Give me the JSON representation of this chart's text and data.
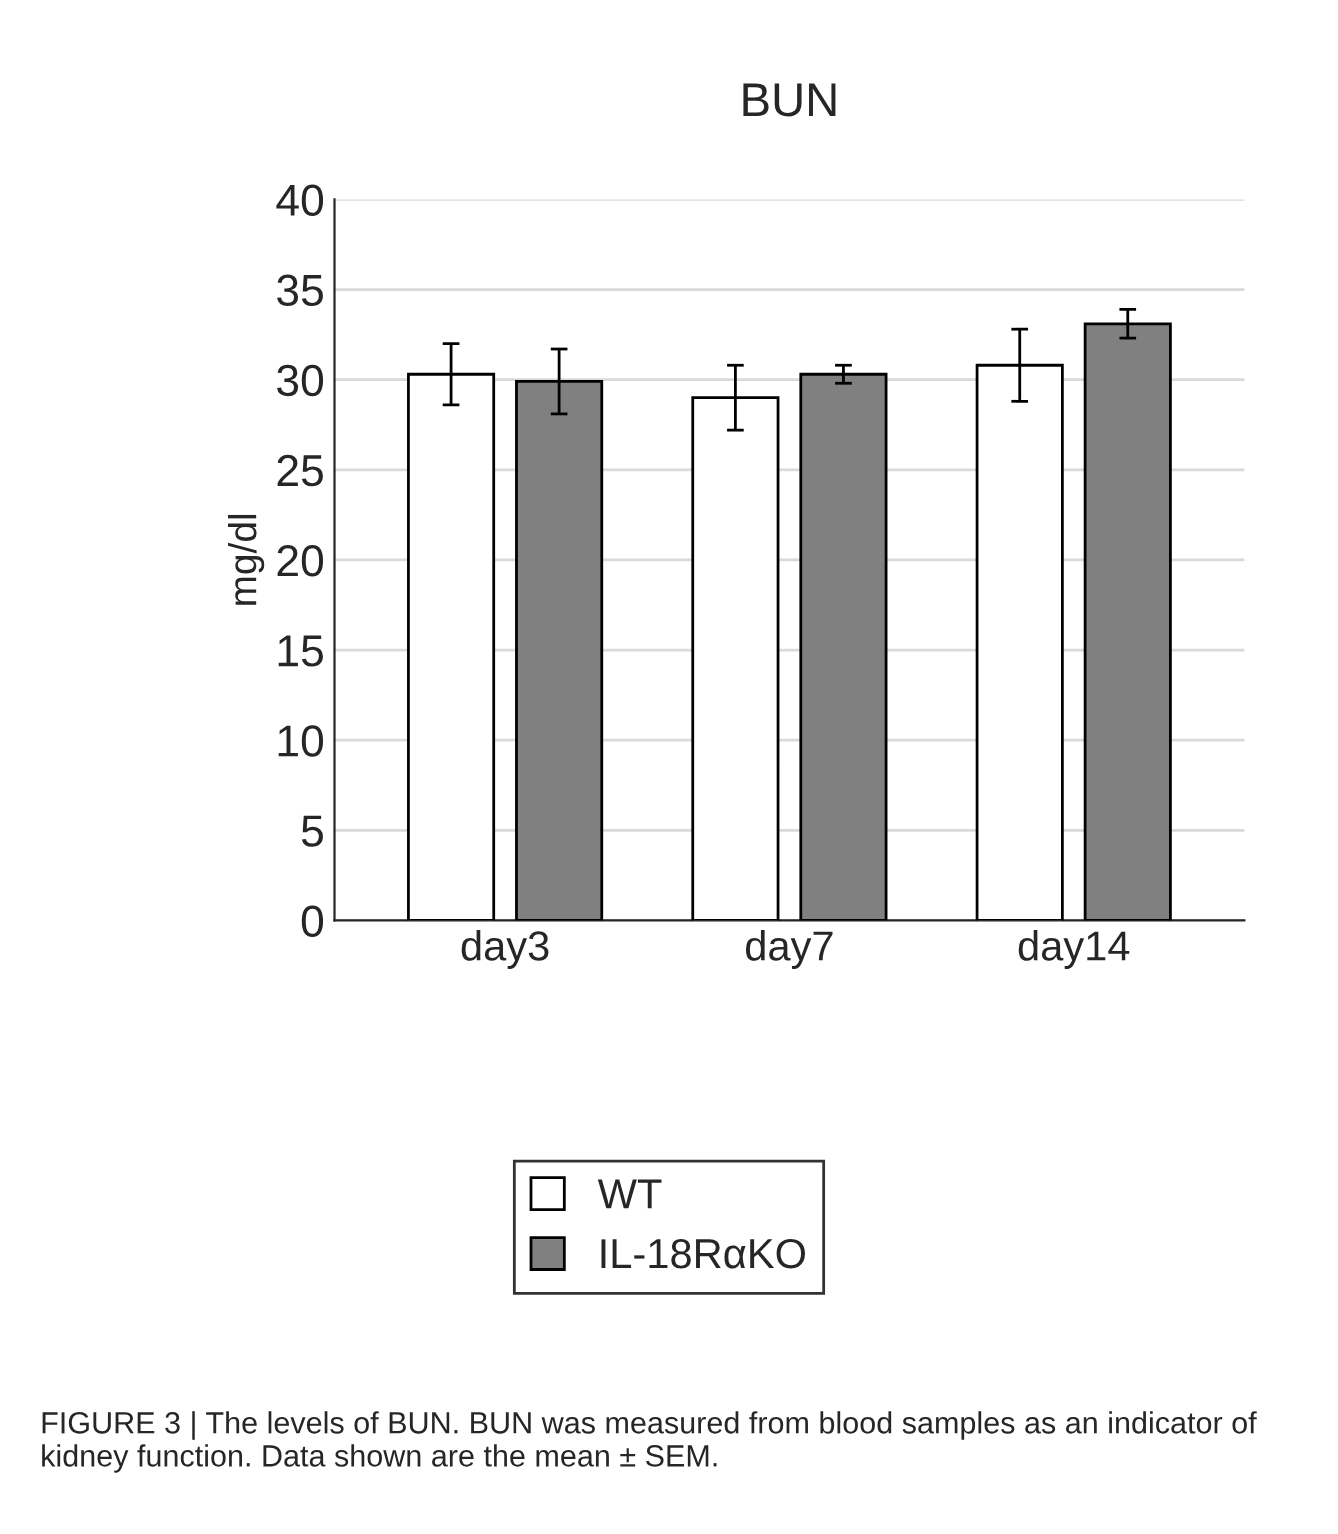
{
  "chart_data": {
    "type": "bar",
    "title": "BUN",
    "ylabel": "mg/dl",
    "categories": [
      "day3",
      "day7",
      "day14"
    ],
    "series": [
      {
        "name": "WT",
        "color": "#ffffff",
        "values": [
          30.3,
          29.0,
          30.8
        ],
        "errors": [
          1.7,
          1.8,
          2.0
        ]
      },
      {
        "name": "IL-18RαKO",
        "color": "#808080",
        "values": [
          29.9,
          30.3,
          33.1
        ],
        "errors": [
          1.8,
          0.5,
          0.8
        ]
      }
    ],
    "ylim": [
      0,
      40
    ],
    "yticks": [
      0,
      5,
      10,
      15,
      20,
      25,
      30,
      35,
      40
    ],
    "grid": "y",
    "legend": "bottom",
    "annotations": [
      "FIGURE 3 | The levels of BUN. BUN was measured from blood samples as an indicator of kidney function. Data shown are the mean ± SEM."
    ]
  }
}
